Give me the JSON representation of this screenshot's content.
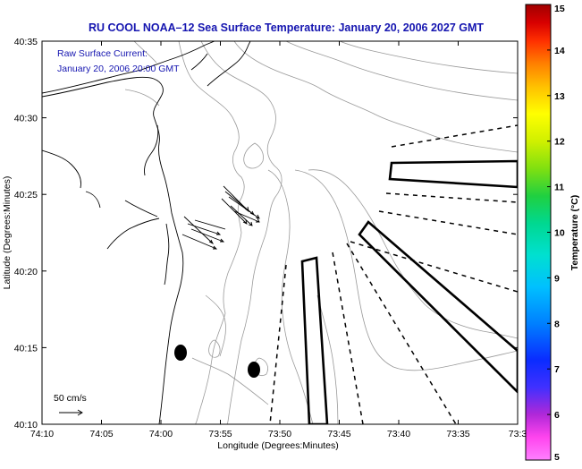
{
  "title": "RU COOL  NOAA–12  Sea Surface Temperature:  January 20, 2006 2027 GMT",
  "annotation": {
    "line1": "Raw Surface Current:",
    "line2": "January 20, 2006 20:00 GMT"
  },
  "scale_label": "50 cm/s",
  "x_axis": {
    "label": "Longitude (Degrees:Minutes)",
    "ticks": [
      "74:10",
      "74:05",
      "74:00",
      "73:55",
      "73:50",
      "73:45",
      "73:40",
      "73:35",
      "73:3"
    ]
  },
  "y_axis": {
    "label": "Latitude (Degrees:Minutes)",
    "ticks": [
      "40:35",
      "40:30",
      "40:25",
      "40:20",
      "40:15",
      "40:10"
    ]
  },
  "colorbar": {
    "label": "Temperature (°C)",
    "ticks": [
      "15",
      "14",
      "13",
      "12",
      "11",
      "10",
      "9",
      "8",
      "7",
      "6",
      "5"
    ],
    "range": [
      5,
      15
    ],
    "colors": [
      "#ff7fff",
      "#ff33ee",
      "#a020d0",
      "#2a2aff",
      "#0098ff",
      "#00e0e0",
      "#00d080",
      "#40e020",
      "#c0ff00",
      "#ffff00",
      "#ffd000",
      "#ff9000",
      "#ff4000",
      "#e00000",
      "#a00000"
    ]
  }
}
